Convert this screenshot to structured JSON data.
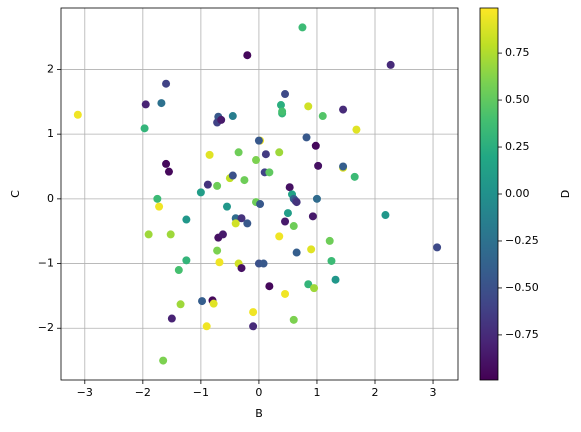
{
  "chart_data": {
    "type": "scatter",
    "x_label": "B",
    "y_label": "C",
    "colorbar_label": "D",
    "colormap": "viridis",
    "grid": true,
    "xlim": [
      -3.41,
      3.43
    ],
    "ylim": [
      -2.8,
      2.95
    ],
    "clim": [
      -0.99,
      0.99
    ],
    "xticks": [
      {
        "value": -3,
        "label": "−3"
      },
      {
        "value": -2,
        "label": "−2"
      },
      {
        "value": -1,
        "label": "−1"
      },
      0,
      1,
      2,
      3
    ],
    "yticks": [
      {
        "value": -2,
        "label": "−2"
      },
      {
        "value": -1,
        "label": "−1"
      },
      0,
      1,
      2
    ],
    "cticks": [
      {
        "value": -0.75,
        "label": "−0.75"
      },
      {
        "value": -0.5,
        "label": "−0.50"
      },
      {
        "value": -0.25,
        "label": "−0.25"
      },
      {
        "value": 0,
        "label": "0.00"
      },
      {
        "value": 0.25,
        "label": "0.25"
      },
      {
        "value": 0.5,
        "label": "0.50"
      },
      {
        "value": 0.75,
        "label": "0.75"
      }
    ],
    "x": [
      0.75,
      -0.2,
      2.27,
      -1.6,
      -1.95,
      -1.68,
      0.45,
      0.38,
      0.4,
      0.4,
      0.85,
      1.1,
      1.45,
      -1.97,
      -3.12,
      -0.7,
      -0.72,
      -0.65,
      -0.45,
      0.82,
      0.98,
      1.68,
      0.02,
      0.0,
      -0.35,
      0.35,
      -0.85,
      0.12,
      -0.05,
      1.02,
      1.45,
      1.45,
      -1.6,
      -1.55,
      1.65,
      0.1,
      0.18,
      -0.25,
      -0.5,
      -0.45,
      0.53,
      0.57,
      0.6,
      0.63,
      0.65,
      -0.88,
      -0.72,
      -1.75,
      -1.72,
      -1.25,
      -1.52,
      -1.9,
      -1.0,
      -0.55,
      -0.4,
      -0.3,
      -0.2,
      -0.4,
      -0.05,
      0.02,
      0.5,
      0.45,
      0.6,
      0.93,
      1.0,
      2.18,
      -0.72,
      -0.7,
      -0.62,
      0.35,
      0.65,
      0.9,
      1.22,
      1.25,
      -1.25,
      -1.38,
      -0.68,
      -0.35,
      -0.3,
      0.0,
      0.08,
      3.07,
      0.18,
      0.45,
      0.85,
      0.95,
      1.32,
      -1.35,
      -0.98,
      -0.8,
      -0.78,
      -1.5,
      -0.9,
      -0.1,
      0.6,
      -0.1,
      -1.65
    ],
    "y": [
      2.65,
      2.22,
      2.07,
      1.78,
      1.46,
      1.48,
      1.62,
      1.45,
      1.32,
      1.35,
      1.43,
      1.28,
      1.38,
      1.09,
      1.3,
      1.27,
      1.18,
      1.22,
      1.28,
      0.95,
      0.82,
      1.07,
      0.9,
      0.9,
      0.72,
      0.72,
      0.68,
      0.69,
      0.6,
      0.51,
      0.48,
      0.5,
      0.54,
      0.42,
      0.34,
      0.41,
      0.41,
      0.29,
      0.32,
      0.36,
      0.18,
      0.07,
      0.0,
      -0.03,
      -0.05,
      0.22,
      0.2,
      0.0,
      -0.12,
      -0.32,
      -0.55,
      -0.55,
      0.1,
      -0.12,
      -0.3,
      -0.3,
      -0.38,
      -0.38,
      -0.05,
      -0.08,
      -0.22,
      -0.35,
      -0.42,
      -0.27,
      0.0,
      -0.25,
      -0.8,
      -0.6,
      -0.55,
      -0.58,
      -0.83,
      -0.78,
      -0.65,
      -0.96,
      -0.95,
      -1.1,
      -0.98,
      -1.0,
      -1.07,
      -1.0,
      -1.0,
      -0.75,
      -1.35,
      -1.47,
      -1.32,
      -1.38,
      -1.25,
      -1.63,
      -1.58,
      -1.57,
      -1.62,
      -1.85,
      -1.97,
      -1.75,
      -1.87,
      -1.97,
      -2.5
    ],
    "c": [
      0.35,
      -0.95,
      -0.75,
      -0.6,
      -0.8,
      -0.25,
      -0.55,
      0.25,
      0.3,
      0.4,
      0.85,
      0.45,
      -0.75,
      0.3,
      0.95,
      -0.45,
      -0.6,
      -0.85,
      -0.15,
      -0.45,
      -0.95,
      0.9,
      0.95,
      -0.45,
      0.55,
      0.7,
      0.9,
      -0.65,
      0.6,
      -0.9,
      0.9,
      -0.4,
      -0.95,
      -0.95,
      0.35,
      -0.6,
      0.5,
      0.55,
      0.8,
      -0.5,
      -0.9,
      0.15,
      -0.35,
      -0.55,
      -0.7,
      -0.7,
      0.55,
      0.35,
      0.95,
      0.05,
      0.7,
      0.7,
      0.1,
      0.05,
      -0.3,
      -0.7,
      -0.45,
      0.85,
      0.55,
      -0.45,
      0.1,
      -0.85,
      0.55,
      -0.85,
      -0.3,
      0.05,
      0.6,
      -0.9,
      -0.85,
      0.95,
      -0.4,
      0.9,
      0.55,
      0.35,
      0.3,
      0.4,
      0.95,
      0.85,
      -0.9,
      -0.5,
      -0.45,
      -0.55,
      -0.95,
      0.95,
      0.3,
      0.7,
      0.05,
      0.7,
      -0.4,
      -0.95,
      0.9,
      -0.8,
      0.95,
      0.95,
      0.6,
      -0.75,
      0.6
    ]
  }
}
